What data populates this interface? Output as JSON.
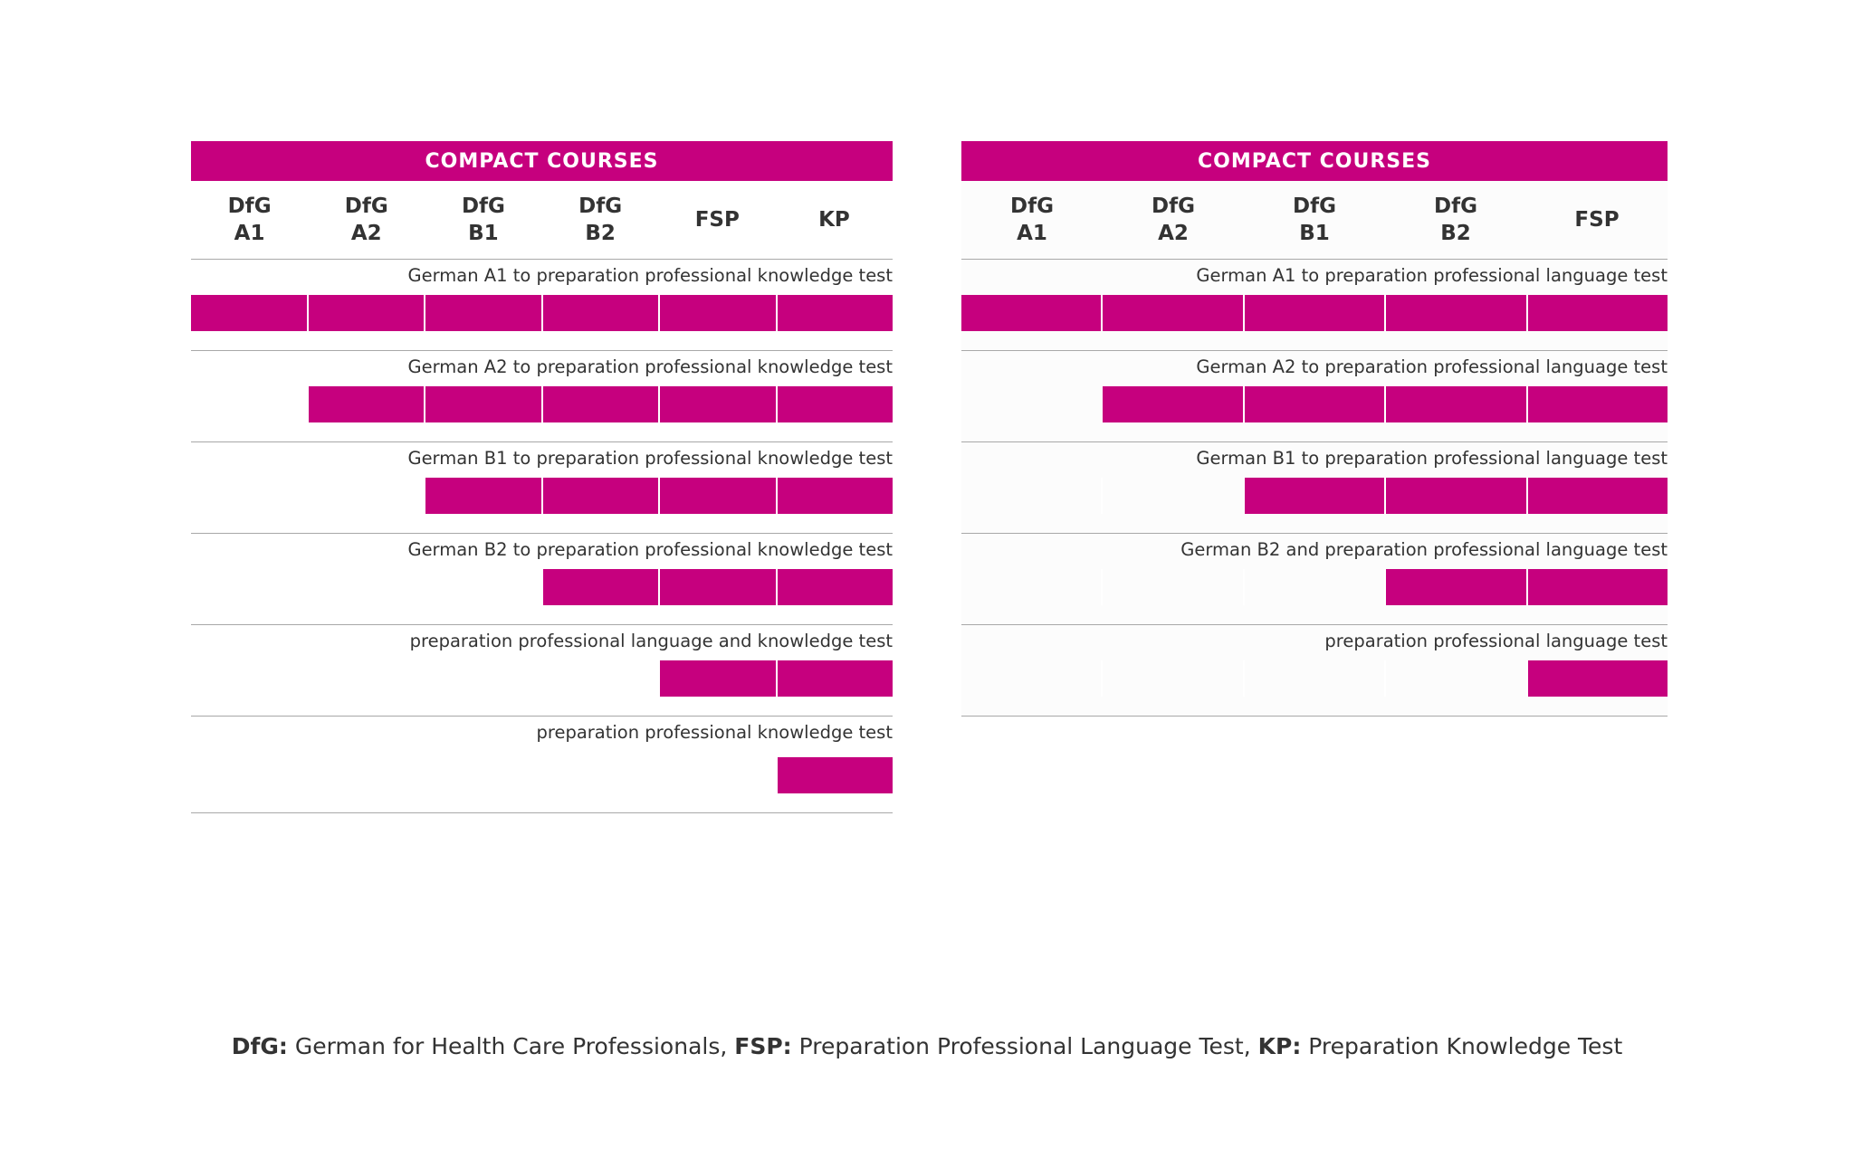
{
  "panels": [
    {
      "header": "COMPACT COURSES",
      "columns": [
        "DfG\nA1",
        "DfG\nA2",
        "DfG\nB1",
        "DfG\nB2",
        "FSP",
        "KP"
      ],
      "rows": [
        {
          "label": "German A1 to preparation professional knowledge test",
          "start_column": 0
        },
        {
          "label": "German A2 to preparation professional knowledge test",
          "start_column": 1
        },
        {
          "label": "German B1 to preparation professional knowledge test",
          "start_column": 2
        },
        {
          "label": "German B2 to preparation professional knowledge test",
          "start_column": 3
        },
        {
          "label": "preparation professional language and knowledge test",
          "start_column": 4
        },
        {
          "label": "preparation professional knowledge test",
          "start_column": 5
        }
      ]
    },
    {
      "header": "COMPACT COURSES",
      "columns": [
        "DfG\nA1",
        "DfG\nA2",
        "DfG\nB1",
        "DfG\nB2",
        "FSP"
      ],
      "rows": [
        {
          "label": "German A1 to preparation professional language test",
          "start_column": 0
        },
        {
          "label": "German A2 to preparation professional language test",
          "start_column": 1
        },
        {
          "label": "German B1 to preparation professional language test",
          "start_column": 2
        },
        {
          "label": "German B2 and preparation professional language test",
          "start_column": 3
        },
        {
          "label": "preparation professional language test",
          "start_column": 4
        }
      ]
    }
  ],
  "legend": {
    "items": [
      {
        "abbr": "DfG:",
        "text": " German for Health Care Professionals, "
      },
      {
        "abbr": "FSP:",
        "text": " Preparation Professional Language Test, "
      },
      {
        "abbr": "KP:",
        "text": " Preparation Knowledge Test"
      }
    ]
  },
  "colors": {
    "accent": "#c6007e",
    "text": "#333333",
    "divider": "#a8a8a8"
  }
}
